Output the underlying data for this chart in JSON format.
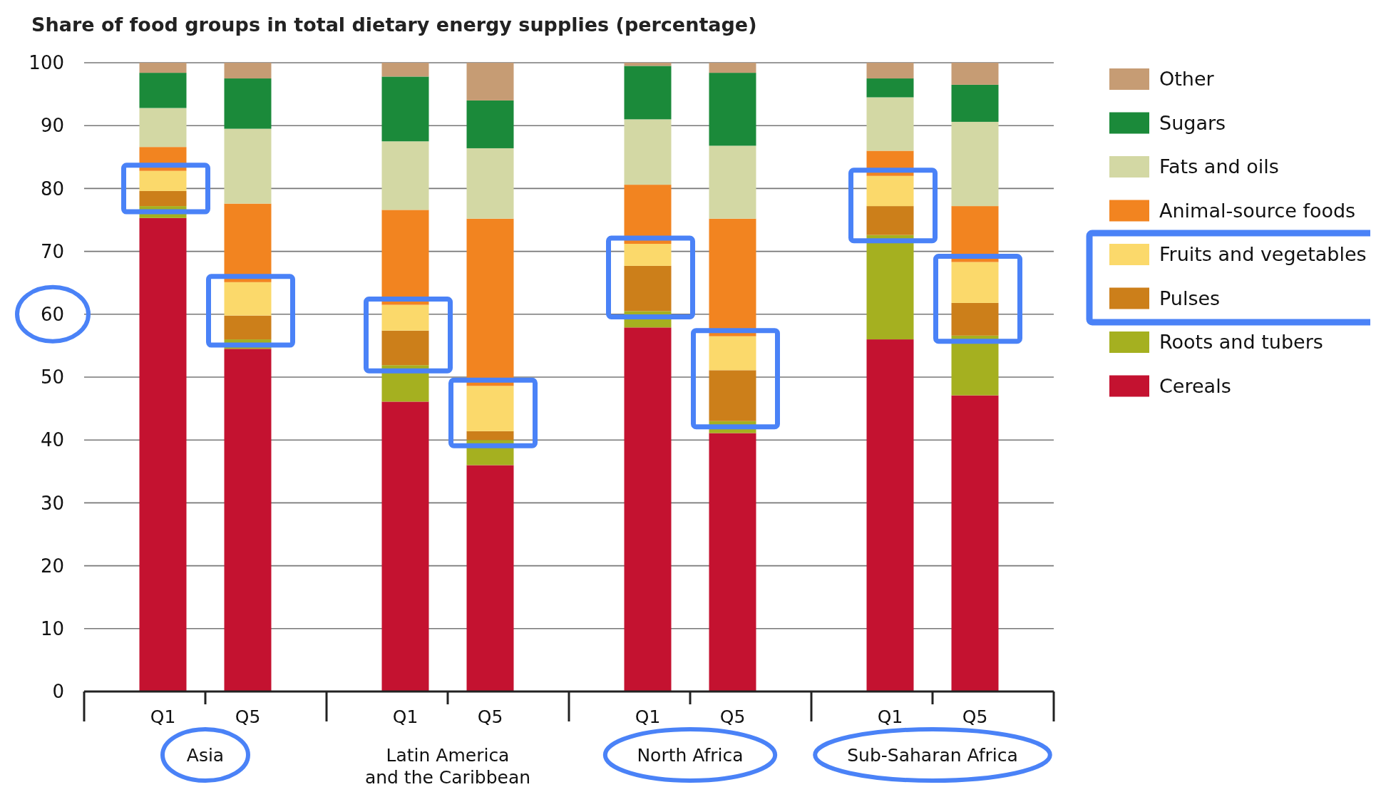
{
  "chart_data": {
    "type": "bar",
    "stacked": true,
    "title": "Share of food groups in total dietary energy supplies (percentage)",
    "categories": [
      "Q1",
      "Q5",
      "Q1",
      "Q5",
      "Q1",
      "Q5",
      "Q1",
      "Q5"
    ],
    "annotations": [
      "Asia",
      "Latin America and the Caribbean",
      "North Africa",
      "Sub-Saharan Africa"
    ],
    "series": [
      {
        "name": "Cereals",
        "color": "#c41230",
        "values": [
          75.3,
          54.5,
          46.1,
          36.0,
          57.9,
          41.1,
          56.0,
          47.1
        ]
      },
      {
        "name": "Roots and tubers",
        "color": "#a5b020",
        "values": [
          1.9,
          1.5,
          5.8,
          4.0,
          2.6,
          1.9,
          16.6,
          9.5
        ]
      },
      {
        "name": "Pulses",
        "color": "#cc7f1a",
        "values": [
          2.4,
          3.8,
          5.5,
          1.4,
          7.2,
          8.1,
          4.6,
          5.2
        ]
      },
      {
        "name": "Fruits and vegetables",
        "color": "#fbd96b",
        "values": [
          3.2,
          5.3,
          4.1,
          7.2,
          3.5,
          5.4,
          4.8,
          6.5
        ]
      },
      {
        "name": "Animal-source foods",
        "color": "#f28420",
        "values": [
          3.8,
          12.5,
          15.1,
          26.6,
          9.4,
          18.7,
          4.0,
          8.9
        ]
      },
      {
        "name": "Fats and oils",
        "color": "#d3d8a4",
        "values": [
          6.2,
          11.9,
          10.9,
          11.2,
          10.4,
          11.6,
          8.5,
          13.4
        ]
      },
      {
        "name": "Sugars",
        "color": "#1b8a3a",
        "values": [
          5.6,
          8.0,
          10.3,
          7.6,
          8.5,
          11.6,
          3.0,
          5.9
        ]
      },
      {
        "name": "Other",
        "color": "#c69c74",
        "values": [
          1.6,
          2.5,
          2.2,
          6.0,
          0.5,
          1.6,
          2.5,
          3.5
        ]
      }
    ],
    "ylim": [
      0,
      100
    ],
    "yticks": [
      0,
      10,
      20,
      30,
      40,
      50,
      60,
      70,
      80,
      90,
      100
    ],
    "grid": "y",
    "legend": "right"
  }
}
